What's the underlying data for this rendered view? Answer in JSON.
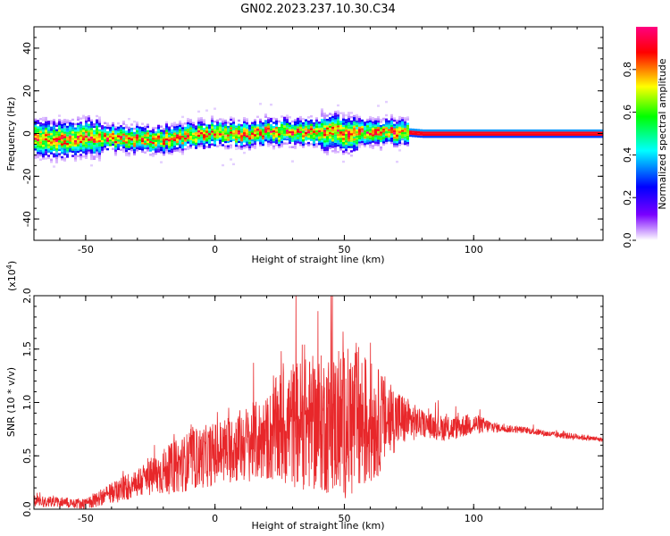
{
  "title": "GN02.2023.237.10.30.C34",
  "colors": {
    "snr_line": "#e8272a",
    "axis": "#000000",
    "background": "#ffffff"
  },
  "chart_data": [
    {
      "type": "heatmap",
      "title": "GN02.2023.237.10.30.C34",
      "xlabel": "Height of straight line (km)",
      "ylabel": "Frequency (Hz)",
      "xlim": [
        -70,
        150
      ],
      "ylim": [
        -50,
        50
      ],
      "xticks": [
        -50,
        0,
        50,
        100
      ],
      "yticks": [
        -40,
        -20,
        0,
        20,
        40
      ],
      "colorbar": {
        "label": "Normalized spectral amplitude",
        "range": [
          0,
          1
        ],
        "ticks": [
          "0.0",
          "0.2",
          "0.4",
          "0.6",
          "0.8"
        ],
        "colormap": [
          "#ffffff",
          "#7a00ff",
          "#0000ff",
          "#00ffff",
          "#00ff00",
          "#ffff00",
          "#ff0000",
          "#ff0080"
        ]
      },
      "ridge_x": [
        -70,
        -60,
        -50,
        -40,
        -30,
        -20,
        -10,
        0,
        10,
        20,
        30,
        40,
        50,
        60,
        70,
        80,
        90,
        100,
        110,
        120,
        130,
        140,
        150
      ],
      "ridge_y": [
        -2,
        -3,
        -2,
        -2,
        -3,
        -3,
        -1,
        0,
        -1,
        1,
        0,
        1,
        0,
        0,
        1,
        0,
        0,
        0,
        0,
        0,
        0,
        0,
        0
      ],
      "grid": false
    },
    {
      "type": "line",
      "xlabel": "Height of straight line (km)",
      "ylabel": "SNR (10 * v/v)",
      "y_multiplier": "(x10^4)",
      "xlim": [
        -70,
        150
      ],
      "ylim": [
        0,
        2.0
      ],
      "xticks": [
        -50,
        0,
        50,
        100
      ],
      "yticks": [
        "0.0",
        "0.5",
        "1.0",
        "1.5",
        "2.0"
      ],
      "envelope_x": [
        -70,
        -60,
        -50,
        -40,
        -30,
        -20,
        -10,
        0,
        10,
        20,
        25,
        30,
        40,
        50,
        55,
        60,
        70,
        80,
        90,
        100,
        110,
        120,
        130,
        140,
        150
      ],
      "envelope_mean": [
        0.08,
        0.07,
        0.05,
        0.15,
        0.25,
        0.35,
        0.45,
        0.52,
        0.6,
        0.66,
        0.75,
        0.8,
        0.8,
        0.8,
        0.82,
        0.8,
        0.85,
        0.8,
        0.75,
        0.8,
        0.76,
        0.74,
        0.7,
        0.68,
        0.65
      ],
      "envelope_spread": [
        0.06,
        0.05,
        0.05,
        0.1,
        0.15,
        0.22,
        0.28,
        0.3,
        0.35,
        0.4,
        0.55,
        0.6,
        0.65,
        0.7,
        0.75,
        0.6,
        0.3,
        0.12,
        0.12,
        0.1,
        0.04,
        0.03,
        0.03,
        0.03,
        0.02
      ],
      "grid": false
    }
  ]
}
